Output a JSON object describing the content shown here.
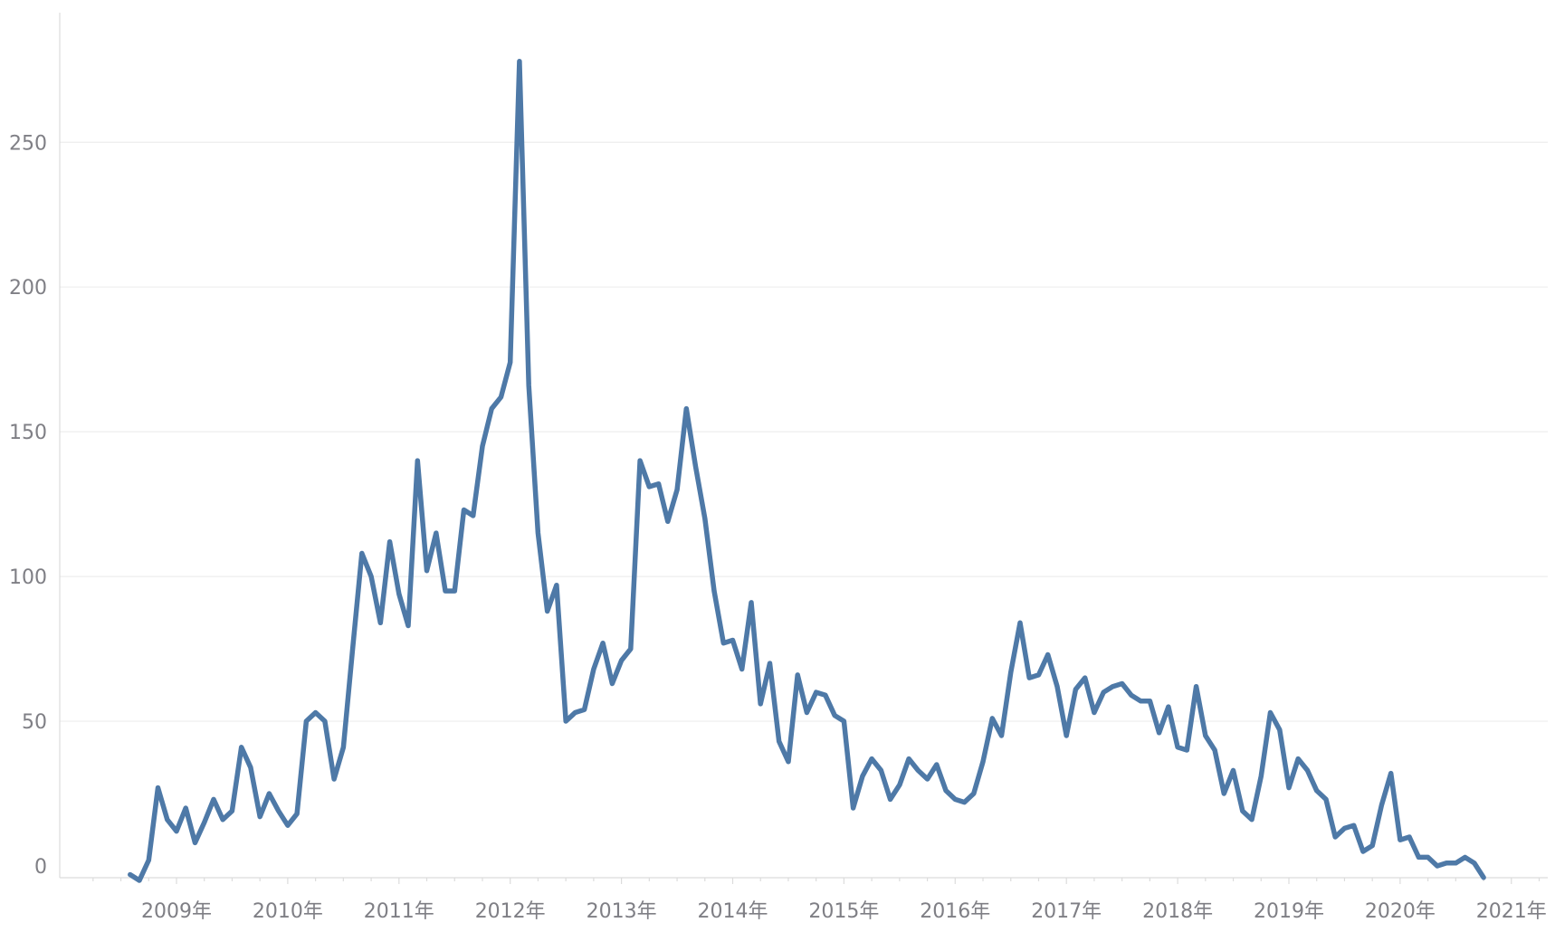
{
  "chart_data": {
    "type": "line",
    "title": "",
    "xlabel": "",
    "ylabel": "",
    "ylim": [
      -5,
      295
    ],
    "yticks": [
      0,
      50,
      100,
      150,
      200,
      250
    ],
    "xticks": [
      "2009年",
      "2010年",
      "2011年",
      "2012年",
      "2013年",
      "2014年",
      "2015年",
      "2016年",
      "2017年",
      "2018年",
      "2019年",
      "2020年",
      "2021年"
    ],
    "xaxis_start": "2008-01-01",
    "xaxis_end": "2021-07-01",
    "grid": "horizontal",
    "legend": "none",
    "color": "#4e79a7",
    "series": [
      {
        "x": [
          "2008-08-01",
          "2008-09-01",
          "2008-10-01",
          "2008-11-01",
          "2008-12-01",
          "2009-01-01",
          "2009-02-01",
          "2009-03-01",
          "2009-04-01",
          "2009-05-01",
          "2009-06-01",
          "2009-07-01",
          "2009-08-01",
          "2009-09-01",
          "2009-10-01",
          "2009-11-01",
          "2009-12-01",
          "2010-01-01",
          "2010-02-01",
          "2010-03-01",
          "2010-04-01",
          "2010-05-01",
          "2010-06-01",
          "2010-07-01",
          "2010-08-01",
          "2010-09-01",
          "2010-10-01",
          "2010-11-01",
          "2010-12-01",
          "2011-01-01",
          "2011-02-01",
          "2011-03-01",
          "2011-04-01",
          "2011-05-01",
          "2011-06-01",
          "2011-07-01",
          "2011-08-01",
          "2011-09-01",
          "2011-10-01",
          "2011-11-01",
          "2011-12-01",
          "2012-01-01",
          "2012-02-01",
          "2012-03-01",
          "2012-04-01",
          "2012-05-01",
          "2012-06-01",
          "2012-07-01",
          "2012-08-01",
          "2012-09-01",
          "2012-10-01",
          "2012-11-01",
          "2012-12-01",
          "2013-01-01",
          "2013-02-01",
          "2013-03-01",
          "2013-04-01",
          "2013-05-01",
          "2013-06-01",
          "2013-07-01",
          "2013-08-01",
          "2013-09-01",
          "2013-10-01",
          "2013-11-01",
          "2013-12-01",
          "2014-01-01",
          "2014-02-01",
          "2014-03-01",
          "2014-04-01",
          "2014-05-01",
          "2014-06-01",
          "2014-07-01",
          "2014-08-01",
          "2014-09-01",
          "2014-10-01",
          "2014-11-01",
          "2014-12-01",
          "2015-01-01",
          "2015-02-01",
          "2015-03-01",
          "2015-04-01",
          "2015-05-01",
          "2015-06-01",
          "2015-07-01",
          "2015-08-01",
          "2015-09-01",
          "2015-10-01",
          "2015-11-01",
          "2015-12-01",
          "2016-01-01",
          "2016-02-01",
          "2016-03-01",
          "2016-04-01",
          "2016-05-01",
          "2016-06-01",
          "2016-07-01",
          "2016-08-01",
          "2016-09-01",
          "2016-10-01",
          "2016-11-01",
          "2016-12-01",
          "2017-01-01",
          "2017-02-01",
          "2017-03-01",
          "2017-04-01",
          "2017-05-01",
          "2017-06-01",
          "2017-07-01",
          "2017-08-01",
          "2017-09-01",
          "2017-10-01",
          "2017-11-01",
          "2017-12-01",
          "2018-01-01",
          "2018-02-01",
          "2018-03-01",
          "2018-04-01",
          "2018-05-01",
          "2018-06-01",
          "2018-07-01",
          "2018-08-01",
          "2018-09-01",
          "2018-10-01",
          "2018-11-01",
          "2018-12-01",
          "2019-01-01",
          "2019-02-01",
          "2019-03-01",
          "2019-04-01",
          "2019-05-01",
          "2019-06-01",
          "2019-07-01",
          "2019-08-01",
          "2019-09-01",
          "2019-10-01",
          "2019-11-01",
          "2019-12-01",
          "2020-01-01",
          "2020-02-01",
          "2020-03-01",
          "2020-04-01",
          "2020-05-01",
          "2020-06-01",
          "2020-07-01",
          "2020-08-01",
          "2020-09-01",
          "2020-10-01"
        ],
        "values": [
          -3,
          -5,
          2,
          27,
          16,
          12,
          20,
          8,
          15,
          23,
          16,
          19,
          41,
          34,
          17,
          25,
          19,
          14,
          18,
          50,
          53,
          50,
          30,
          41,
          75,
          108,
          100,
          84,
          112,
          94,
          83,
          140,
          102,
          115,
          95,
          95,
          123,
          121,
          145,
          158,
          162,
          174,
          278,
          166,
          115,
          88,
          97,
          50,
          53,
          54,
          68,
          77,
          63,
          71,
          75,
          140,
          131,
          132,
          119,
          130,
          158,
          138,
          120,
          95,
          77,
          78,
          68,
          91,
          56,
          70,
          43,
          36,
          66,
          53,
          60,
          59,
          52,
          50,
          20,
          31,
          37,
          33,
          23,
          28,
          37,
          33,
          30,
          35,
          26,
          23,
          22,
          25,
          36,
          51,
          45,
          67,
          84,
          65,
          66,
          73,
          62,
          45,
          61,
          65,
          53,
          60,
          62,
          63,
          59,
          57,
          57,
          46,
          55,
          41,
          40,
          62,
          45,
          40,
          25,
          33,
          19,
          16,
          31,
          53,
          47,
          27,
          37,
          33,
          26,
          23,
          10,
          13,
          14,
          5,
          7,
          21,
          32,
          9,
          10,
          3,
          3,
          0,
          1,
          1,
          3,
          1,
          -4
        ]
      }
    ]
  }
}
